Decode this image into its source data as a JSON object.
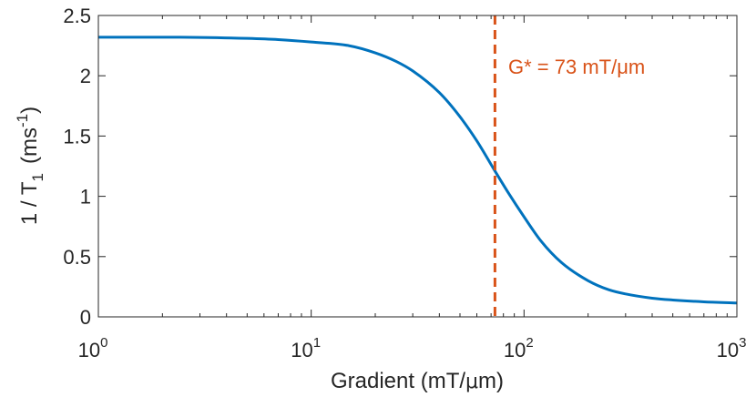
{
  "chart_data": {
    "type": "line",
    "x_scale": "log",
    "xlim": [
      1,
      1000
    ],
    "ylim": [
      0,
      2.5
    ],
    "x_ticks": [
      {
        "base": "10",
        "exp": "0",
        "value": 1
      },
      {
        "base": "10",
        "exp": "1",
        "value": 10
      },
      {
        "base": "10",
        "exp": "2",
        "value": 100
      },
      {
        "base": "10",
        "exp": "3",
        "value": 1000
      }
    ],
    "y_ticks": [
      {
        "label": "0",
        "value": 0
      },
      {
        "label": "0.5",
        "value": 0.5
      },
      {
        "label": "1",
        "value": 1
      },
      {
        "label": "1.5",
        "value": 1.5
      },
      {
        "label": "2",
        "value": 2
      },
      {
        "label": "2.5",
        "value": 2.5
      }
    ],
    "xlabel": {
      "main": "Gradient (mT/",
      "mu": "μ",
      "end": "m)"
    },
    "ylabel": {
      "prefix": "1 / T",
      "sub": "1",
      "middle": "(ms",
      "sup": "-1",
      "end": ")"
    },
    "series": [
      {
        "color": "#0072BD",
        "points": [
          [
            1,
            2.32
          ],
          [
            2,
            2.32
          ],
          [
            3,
            2.318
          ],
          [
            5,
            2.31
          ],
          [
            7,
            2.3
          ],
          [
            10,
            2.28
          ],
          [
            15,
            2.25
          ],
          [
            20,
            2.19
          ],
          [
            25,
            2.12
          ],
          [
            30,
            2.04
          ],
          [
            40,
            1.86
          ],
          [
            50,
            1.66
          ],
          [
            60,
            1.46
          ],
          [
            73,
            1.21
          ],
          [
            85,
            1.02
          ],
          [
            100,
            0.83
          ],
          [
            120,
            0.63
          ],
          [
            150,
            0.45
          ],
          [
            200,
            0.3
          ],
          [
            250,
            0.225
          ],
          [
            300,
            0.19
          ],
          [
            400,
            0.155
          ],
          [
            500,
            0.14
          ],
          [
            700,
            0.125
          ],
          [
            1000,
            0.115
          ]
        ]
      }
    ],
    "vline": {
      "x": 73,
      "color": "#D95319",
      "style": "dashed",
      "label": "G* = 73 mT/μm"
    },
    "grid": false,
    "box": true
  }
}
